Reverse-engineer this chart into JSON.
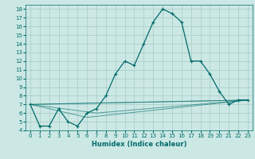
{
  "xlabel": "Humidex (Indice chaleur)",
  "bg_color": "#cce8e4",
  "grid_color": "#aacfcb",
  "line_color": "#006b6b",
  "xlim": [
    -0.5,
    23.5
  ],
  "ylim": [
    4,
    18.5
  ],
  "xticks": [
    0,
    1,
    2,
    3,
    4,
    5,
    6,
    7,
    8,
    9,
    10,
    11,
    12,
    13,
    14,
    15,
    16,
    17,
    18,
    19,
    20,
    21,
    22,
    23
  ],
  "yticks": [
    4,
    5,
    6,
    7,
    8,
    9,
    10,
    11,
    12,
    13,
    14,
    15,
    16,
    17,
    18
  ],
  "main_series": {
    "x": [
      0,
      1,
      2,
      3,
      4,
      5,
      6,
      7,
      8,
      9,
      10,
      11,
      12,
      13,
      14,
      15,
      16,
      17,
      18,
      19,
      20,
      21,
      22,
      23
    ],
    "y": [
      7,
      4.5,
      4.5,
      6.5,
      5,
      4.5,
      6,
      6.5,
      8,
      10.5,
      12,
      11.5,
      14,
      16.5,
      18,
      17.5,
      16.5,
      12,
      12,
      10.5,
      8.5,
      7,
      7.5,
      7.5
    ]
  },
  "fan_lines": [
    {
      "x": [
        0,
        23
      ],
      "y": [
        7,
        7.5
      ]
    },
    {
      "x": [
        0,
        23
      ],
      "y": [
        7,
        7.5
      ]
    },
    {
      "x": [
        0,
        7,
        23
      ],
      "y": [
        7,
        6.0,
        7.5
      ]
    },
    {
      "x": [
        0,
        6,
        23
      ],
      "y": [
        7,
        5.5,
        7.5
      ]
    }
  ],
  "xlabel_fontsize": 6,
  "tick_fontsize": 5
}
